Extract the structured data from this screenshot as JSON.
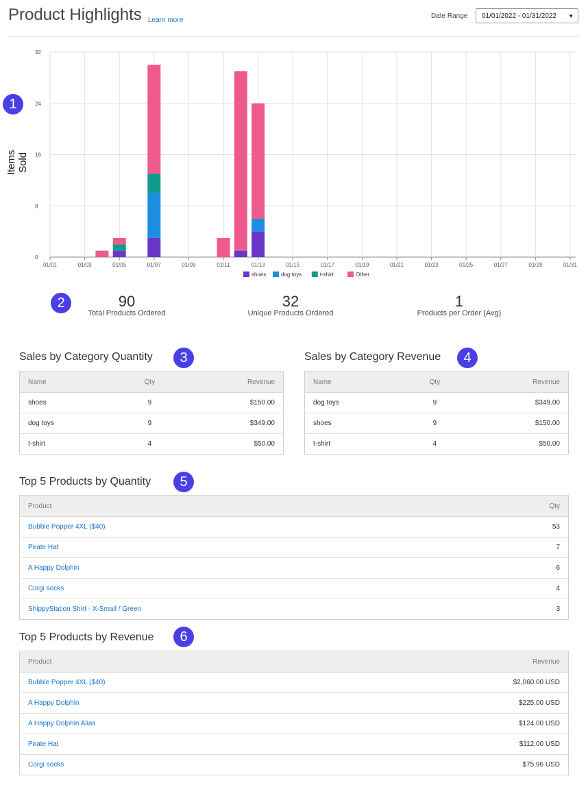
{
  "header": {
    "title": "Product Highlights",
    "learn_more": "Learn more",
    "date_range_label": "Date Range",
    "date_range_value": "01/01/2022 - 01/31/2022",
    "caret": "▼"
  },
  "badges": [
    "1",
    "2",
    "3",
    "4",
    "5",
    "6"
  ],
  "chart_data": {
    "type": "bar",
    "stacked": true,
    "ylabel": "Items Sold",
    "ylim": [
      0,
      32
    ],
    "yticks": [
      0,
      8,
      16,
      24,
      32
    ],
    "xtick_labels": [
      "01/01",
      "01/03",
      "01/05",
      "01/07",
      "01/09",
      "01/11",
      "01/13",
      "01/15",
      "01/17",
      "01/19",
      "01/21",
      "01/23",
      "01/25",
      "01/27",
      "01/29",
      "01/31"
    ],
    "categories": [
      "01/01",
      "01/02",
      "01/03",
      "01/04",
      "01/05",
      "01/06",
      "01/07",
      "01/08",
      "01/09",
      "01/10",
      "01/11",
      "01/12",
      "01/13",
      "01/14",
      "01/15",
      "01/16",
      "01/17",
      "01/18",
      "01/19",
      "01/20",
      "01/21",
      "01/22",
      "01/23",
      "01/24",
      "01/25",
      "01/26",
      "01/27",
      "01/28",
      "01/29",
      "01/30",
      "01/31"
    ],
    "series": [
      {
        "name": "shoes",
        "color": "#6a35c9",
        "values": [
          0,
          0,
          0,
          0,
          1,
          0,
          3,
          0,
          0,
          0,
          0,
          1,
          4,
          0,
          0,
          0,
          0,
          0,
          0,
          0,
          0,
          0,
          0,
          0,
          0,
          0,
          0,
          0,
          0,
          0,
          0
        ]
      },
      {
        "name": "dog toys",
        "color": "#1e8fe0",
        "values": [
          0,
          0,
          0,
          0,
          0,
          0,
          7,
          0,
          0,
          0,
          0,
          0,
          2,
          0,
          0,
          0,
          0,
          0,
          0,
          0,
          0,
          0,
          0,
          0,
          0,
          0,
          0,
          0,
          0,
          0,
          0
        ]
      },
      {
        "name": "t-shirt",
        "color": "#129b8a",
        "values": [
          0,
          0,
          0,
          0,
          1,
          0,
          3,
          0,
          0,
          0,
          0,
          0,
          0,
          0,
          0,
          0,
          0,
          0,
          0,
          0,
          0,
          0,
          0,
          0,
          0,
          0,
          0,
          0,
          0,
          0,
          0
        ]
      },
      {
        "name": "Other",
        "color": "#ef5a8d",
        "values": [
          0,
          0,
          0,
          1,
          1,
          0,
          17,
          0,
          0,
          0,
          3,
          28,
          18,
          0,
          0,
          0,
          0,
          0,
          0,
          0,
          0,
          0,
          0,
          0,
          0,
          0,
          0,
          0,
          0,
          0,
          0
        ]
      }
    ]
  },
  "stats": [
    {
      "value": "90",
      "label": "Total Products Ordered"
    },
    {
      "value": "32",
      "label": "Unique Products Ordered"
    },
    {
      "value": "1",
      "label": "Products per Order (Avg)"
    }
  ],
  "sales_qty": {
    "title": "Sales by Category Quantity",
    "headers": [
      "Name",
      "Qty",
      "Revenue"
    ],
    "rows": [
      [
        "shoes",
        "9",
        "$150.00"
      ],
      [
        "dog toys",
        "9",
        "$349.00"
      ],
      [
        "t-shirt",
        "4",
        "$50.00"
      ]
    ]
  },
  "sales_rev": {
    "title": "Sales by Category Revenue",
    "headers": [
      "Name",
      "Qty",
      "Revenue"
    ],
    "rows": [
      [
        "dog toys",
        "9",
        "$349.00"
      ],
      [
        "shoes",
        "9",
        "$150.00"
      ],
      [
        "t-shirt",
        "4",
        "$50.00"
      ]
    ]
  },
  "top_qty": {
    "title": "Top 5 Products by Quantity",
    "headers": [
      "Product",
      "Qty"
    ],
    "rows": [
      [
        "Bubble Popper 4XL ($40)",
        "53"
      ],
      [
        "Pirate Hat",
        "7"
      ],
      [
        "A Happy Dolphin",
        "6"
      ],
      [
        "Corgi socks",
        "4"
      ],
      [
        "ShippyStation Shirt - X-Small / Green",
        "3"
      ]
    ]
  },
  "top_rev": {
    "title": "Top 5 Products by Revenue",
    "headers": [
      "Product",
      "Revenue"
    ],
    "rows": [
      [
        "Bubble Popper 4XL ($40)",
        "$2,060.00 USD"
      ],
      [
        "A Happy Dolphin",
        "$225.00 USD"
      ],
      [
        "A Happy Dolphin Alias",
        "$124.00 USD"
      ],
      [
        "Pirate Hat",
        "$112.00 USD"
      ],
      [
        "Corgi socks",
        "$75.96 USD"
      ]
    ]
  }
}
